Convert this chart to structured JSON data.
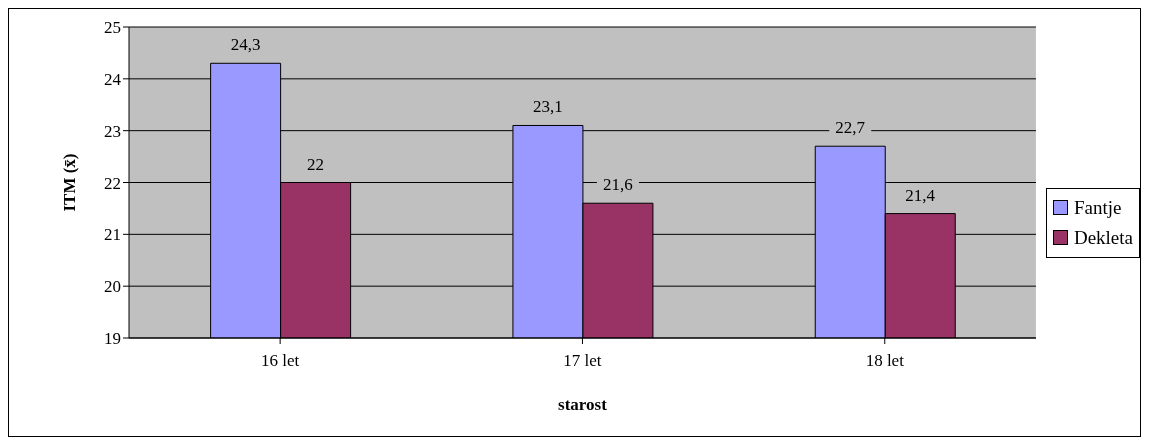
{
  "chart_data": {
    "type": "bar",
    "xlabel": "starost",
    "ylabel": "ITM (x̄)",
    "categories": [
      "16 let",
      "17 let",
      "18 let"
    ],
    "series": [
      {
        "name": "Fantje",
        "color": "#9999ff",
        "values": [
          24.3,
          23.1,
          22.7
        ],
        "value_labels": [
          "24,3",
          "23,1",
          "22,7"
        ]
      },
      {
        "name": "Dekleta",
        "color": "#993366",
        "values": [
          22,
          21.6,
          21.4
        ],
        "value_labels": [
          "22",
          "21,6",
          "21,4"
        ]
      }
    ],
    "ylim": [
      19,
      25
    ],
    "yticks": [
      19,
      20,
      21,
      22,
      23,
      24,
      25
    ],
    "grid": "y",
    "legend": "right"
  }
}
